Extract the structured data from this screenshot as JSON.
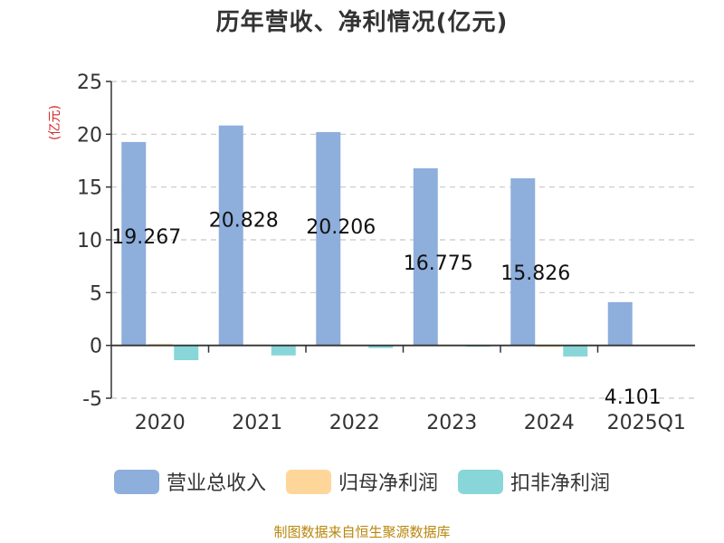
{
  "chart_data": {
    "type": "bar",
    "title": "历年营收、净利情况(亿元)",
    "unit_label": "(亿元)",
    "categories": [
      "2020",
      "2021",
      "2022",
      "2023",
      "2024",
      "2025Q1"
    ],
    "series": [
      {
        "name": "营业总收入",
        "color": "#8eaedc",
        "values": [
          19.267,
          20.828,
          20.206,
          16.775,
          15.826,
          4.101
        ]
      },
      {
        "name": "归母净利润",
        "color": "#ffd699",
        "values": [
          0.15,
          0.08,
          0.05,
          0.05,
          -0.15,
          0
        ]
      },
      {
        "name": "扣非净利润",
        "color": "#88d6d8",
        "values": [
          -1.4,
          -0.95,
          -0.25,
          -0.05,
          -1.05,
          0
        ]
      }
    ],
    "data_labels": [
      "19.267",
      "20.828",
      "20.206",
      "16.775",
      "15.826",
      "4.101"
    ],
    "ylim": [
      -5,
      25
    ],
    "yticks": [
      -5,
      0,
      5,
      10,
      15,
      20,
      25
    ],
    "grid": true,
    "legend": "bottom"
  },
  "source": "制图数据来自恒生聚源数据库"
}
